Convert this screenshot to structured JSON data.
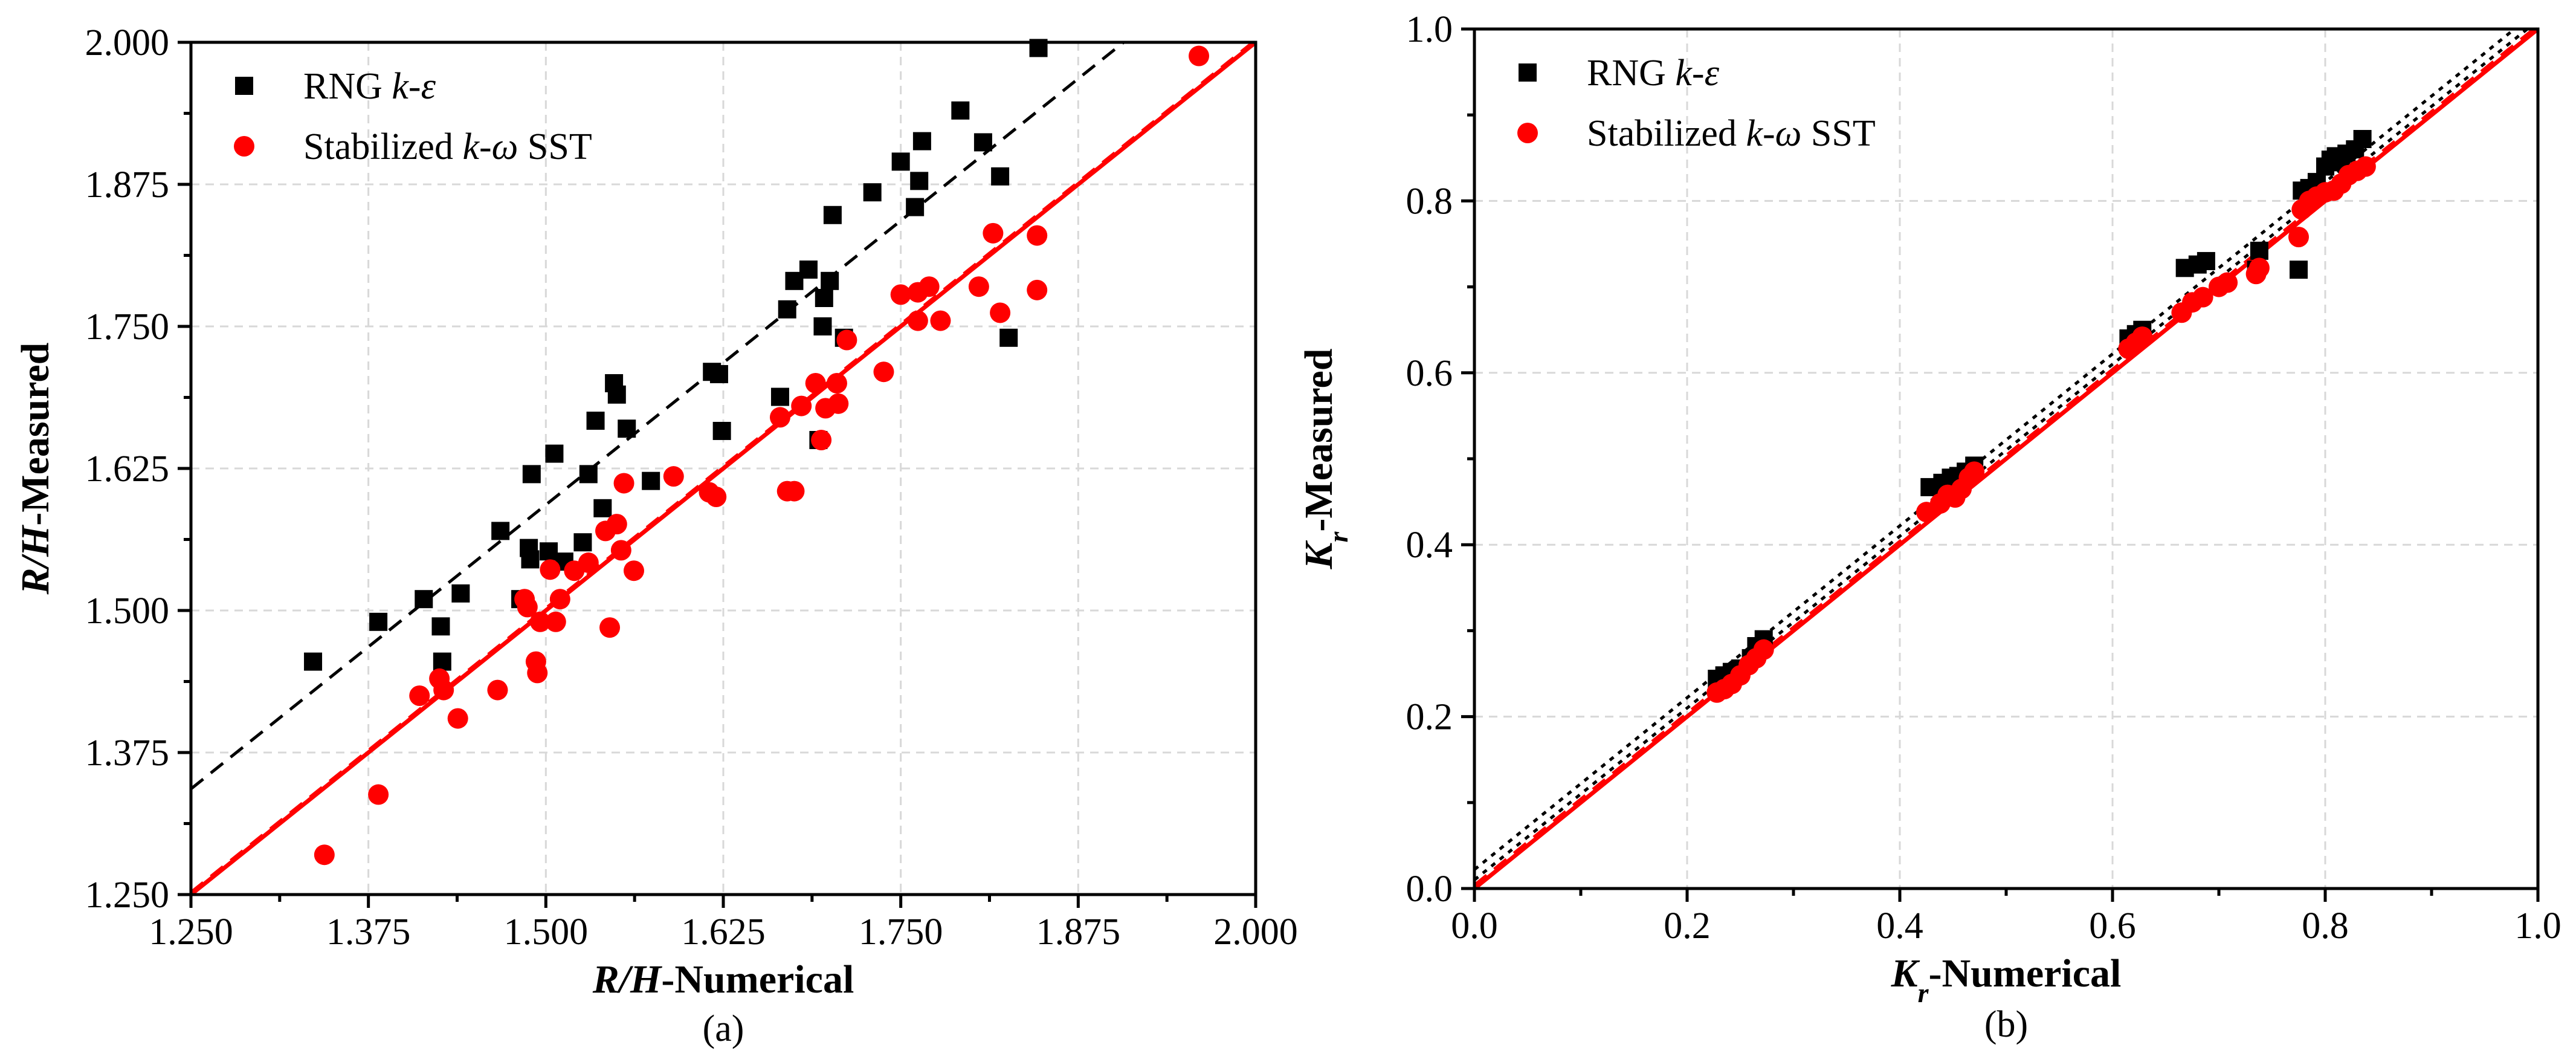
{
  "chart_data": [
    {
      "type": "scatter",
      "caption": "(a)",
      "xlabel": {
        "italic": "R/H",
        "text": "-Numerical"
      },
      "ylabel": {
        "italic": "R/H",
        "text": "-Measured"
      },
      "xlim": [
        1.25,
        2.0
      ],
      "ylim": [
        1.25,
        2.0
      ],
      "xticks": [
        "1.250",
        "1.375",
        "1.500",
        "1.625",
        "1.750",
        "1.875",
        "2.000"
      ],
      "yticks": [
        "1.250",
        "1.375",
        "1.500",
        "1.625",
        "1.750",
        "1.875",
        "2.000"
      ],
      "grid": true,
      "legend_position": "top-left",
      "series": [
        {
          "name": "RNG k-ε",
          "legend_plain": "RNG ",
          "legend_italic": "k-ε",
          "legend_tail": "",
          "marker": "square",
          "color": "#000000",
          "points": [
            [
              1.336,
              1.455
            ],
            [
              1.382,
              1.49
            ],
            [
              1.414,
              1.51
            ],
            [
              1.426,
              1.486
            ],
            [
              1.427,
              1.455
            ],
            [
              1.44,
              1.515
            ],
            [
              1.468,
              1.57
            ],
            [
              1.482,
              1.51
            ],
            [
              1.488,
              1.555
            ],
            [
              1.489,
              1.545
            ],
            [
              1.49,
              1.62
            ],
            [
              1.502,
              1.552
            ],
            [
              1.506,
              1.638
            ],
            [
              1.513,
              1.543
            ],
            [
              1.526,
              1.56
            ],
            [
              1.53,
              1.62
            ],
            [
              1.535,
              1.667
            ],
            [
              1.54,
              1.59
            ],
            [
              1.548,
              1.7
            ],
            [
              1.55,
              1.69
            ],
            [
              1.557,
              1.66
            ],
            [
              1.574,
              1.614
            ],
            [
              1.617,
              1.71
            ],
            [
              1.622,
              1.708
            ],
            [
              1.624,
              1.658
            ],
            [
              1.665,
              1.688
            ],
            [
              1.67,
              1.765
            ],
            [
              1.675,
              1.79
            ],
            [
              1.685,
              1.8
            ],
            [
              1.692,
              1.65
            ],
            [
              1.695,
              1.75
            ],
            [
              1.696,
              1.775
            ],
            [
              1.7,
              1.79
            ],
            [
              1.702,
              1.848
            ],
            [
              1.71,
              1.74
            ],
            [
              1.73,
              1.868
            ],
            [
              1.75,
              1.895
            ],
            [
              1.76,
              1.855
            ],
            [
              1.763,
              1.878
            ],
            [
              1.765,
              1.913
            ],
            [
              1.792,
              1.94
            ],
            [
              1.808,
              1.912
            ],
            [
              1.82,
              1.882
            ],
            [
              1.826,
              1.74
            ],
            [
              1.847,
              1.995
            ]
          ]
        },
        {
          "name": "Stabilized k-ω SST",
          "legend_plain": "Stabilized ",
          "legend_italic": "k-ω",
          "legend_tail": " SST",
          "marker": "circle",
          "color": "#ff0000",
          "points": [
            [
              1.344,
              1.285
            ],
            [
              1.382,
              1.338
            ],
            [
              1.411,
              1.425
            ],
            [
              1.425,
              1.44
            ],
            [
              1.428,
              1.43
            ],
            [
              1.438,
              1.405
            ],
            [
              1.466,
              1.43
            ],
            [
              1.485,
              1.51
            ],
            [
              1.487,
              1.503
            ],
            [
              1.493,
              1.455
            ],
            [
              1.494,
              1.445
            ],
            [
              1.496,
              1.49
            ],
            [
              1.503,
              1.536
            ],
            [
              1.507,
              1.49
            ],
            [
              1.51,
              1.51
            ],
            [
              1.52,
              1.535
            ],
            [
              1.53,
              1.542
            ],
            [
              1.542,
              1.57
            ],
            [
              1.545,
              1.485
            ],
            [
              1.55,
              1.576
            ],
            [
              1.553,
              1.553
            ],
            [
              1.555,
              1.612
            ],
            [
              1.562,
              1.535
            ],
            [
              1.59,
              1.618
            ],
            [
              1.615,
              1.604
            ],
            [
              1.62,
              1.6
            ],
            [
              1.665,
              1.67
            ],
            [
              1.67,
              1.605
            ],
            [
              1.675,
              1.605
            ],
            [
              1.68,
              1.68
            ],
            [
              1.69,
              1.7
            ],
            [
              1.694,
              1.65
            ],
            [
              1.697,
              1.678
            ],
            [
              1.706,
              1.682
            ],
            [
              1.705,
              1.7
            ],
            [
              1.712,
              1.738
            ],
            [
              1.738,
              1.71
            ],
            [
              1.75,
              1.778
            ],
            [
              1.762,
              1.755
            ],
            [
              1.762,
              1.78
            ],
            [
              1.77,
              1.785
            ],
            [
              1.778,
              1.755
            ],
            [
              1.805,
              1.785
            ],
            [
              1.815,
              1.832
            ],
            [
              1.82,
              1.762
            ],
            [
              1.846,
              1.83
            ],
            [
              1.846,
              1.782
            ],
            [
              1.96,
              1.988
            ]
          ]
        }
      ],
      "fit_lines": [
        {
          "name": "RNG fit",
          "color": "#000000",
          "style": "dashed",
          "slope": 1.0,
          "intercept": 0.093
        },
        {
          "name": "SST fit",
          "color": "#ff0000",
          "style": "dashed",
          "slope": 1.0,
          "intercept": 0.002
        },
        {
          "name": "1:1 line",
          "color": "#ff0000",
          "style": "solid",
          "slope": 1.0,
          "intercept": 0.0
        }
      ]
    },
    {
      "type": "scatter",
      "caption": "(b)",
      "xlabel": {
        "italic": "K",
        "sub": "r",
        "text": "-Numerical"
      },
      "ylabel": {
        "italic": "K",
        "sub": "r",
        "text": "-Measured"
      },
      "xlim": [
        0.0,
        1.0
      ],
      "ylim": [
        0.0,
        1.0
      ],
      "xticks": [
        "0.0",
        "0.2",
        "0.4",
        "0.6",
        "0.8",
        "1.0"
      ],
      "yticks": [
        "0.0",
        "0.2",
        "0.4",
        "0.6",
        "0.8",
        "1.0"
      ],
      "grid": true,
      "legend_position": "top-left",
      "series": [
        {
          "name": "RNG k-ε",
          "legend_plain": "RNG ",
          "legend_italic": "k-ε",
          "legend_tail": "",
          "marker": "square",
          "color": "#000000",
          "points": [
            [
              0.228,
              0.244
            ],
            [
              0.235,
              0.248
            ],
            [
              0.242,
              0.252
            ],
            [
              0.25,
              0.256
            ],
            [
              0.26,
              0.268
            ],
            [
              0.265,
              0.282
            ],
            [
              0.272,
              0.29
            ],
            [
              0.428,
              0.467
            ],
            [
              0.44,
              0.472
            ],
            [
              0.448,
              0.478
            ],
            [
              0.455,
              0.48
            ],
            [
              0.462,
              0.485
            ],
            [
              0.47,
              0.492
            ],
            [
              0.615,
              0.64
            ],
            [
              0.622,
              0.645
            ],
            [
              0.628,
              0.65
            ],
            [
              0.668,
              0.722
            ],
            [
              0.68,
              0.726
            ],
            [
              0.688,
              0.73
            ],
            [
              0.735,
              0.72
            ],
            [
              0.738,
              0.742
            ],
            [
              0.775,
              0.72
            ],
            [
              0.778,
              0.812
            ],
            [
              0.785,
              0.815
            ],
            [
              0.792,
              0.822
            ],
            [
              0.8,
              0.84
            ],
            [
              0.805,
              0.848
            ],
            [
              0.81,
              0.852
            ],
            [
              0.815,
              0.845
            ],
            [
              0.82,
              0.855
            ],
            [
              0.828,
              0.86
            ],
            [
              0.835,
              0.872
            ]
          ]
        },
        {
          "name": "Stabilized k-ω SST",
          "legend_plain": "Stabilized ",
          "legend_italic": "k-ω",
          "legend_tail": " SST",
          "marker": "circle",
          "color": "#ff0000",
          "points": [
            [
              0.228,
              0.228
            ],
            [
              0.235,
              0.232
            ],
            [
              0.242,
              0.238
            ],
            [
              0.25,
              0.248
            ],
            [
              0.258,
              0.26
            ],
            [
              0.265,
              0.268
            ],
            [
              0.272,
              0.278
            ],
            [
              0.425,
              0.438
            ],
            [
              0.438,
              0.448
            ],
            [
              0.445,
              0.458
            ],
            [
              0.452,
              0.455
            ],
            [
              0.458,
              0.465
            ],
            [
              0.465,
              0.478
            ],
            [
              0.47,
              0.485
            ],
            [
              0.615,
              0.628
            ],
            [
              0.622,
              0.635
            ],
            [
              0.628,
              0.642
            ],
            [
              0.665,
              0.67
            ],
            [
              0.675,
              0.682
            ],
            [
              0.685,
              0.688
            ],
            [
              0.7,
              0.7
            ],
            [
              0.708,
              0.705
            ],
            [
              0.735,
              0.715
            ],
            [
              0.738,
              0.722
            ],
            [
              0.775,
              0.758
            ],
            [
              0.778,
              0.79
            ],
            [
              0.785,
              0.8
            ],
            [
              0.792,
              0.805
            ],
            [
              0.8,
              0.81
            ],
            [
              0.808,
              0.812
            ],
            [
              0.815,
              0.82
            ],
            [
              0.822,
              0.83
            ],
            [
              0.83,
              0.835
            ],
            [
              0.838,
              0.84
            ]
          ]
        }
      ],
      "fit_lines": [
        {
          "name": "RNG fit",
          "color": "#000000",
          "style": "dotted",
          "slope": 1.0,
          "intercept": 0.022
        },
        {
          "name": "SST fit",
          "color": "#000000",
          "style": "dotted",
          "slope": 1.0,
          "intercept": 0.01
        },
        {
          "name": "SST fit red",
          "color": "#ff0000",
          "style": "dashed",
          "slope": 1.0,
          "intercept": 0.004
        },
        {
          "name": "1:1 line",
          "color": "#ff0000",
          "style": "solid",
          "slope": 1.0,
          "intercept": 0.0
        }
      ]
    }
  ]
}
